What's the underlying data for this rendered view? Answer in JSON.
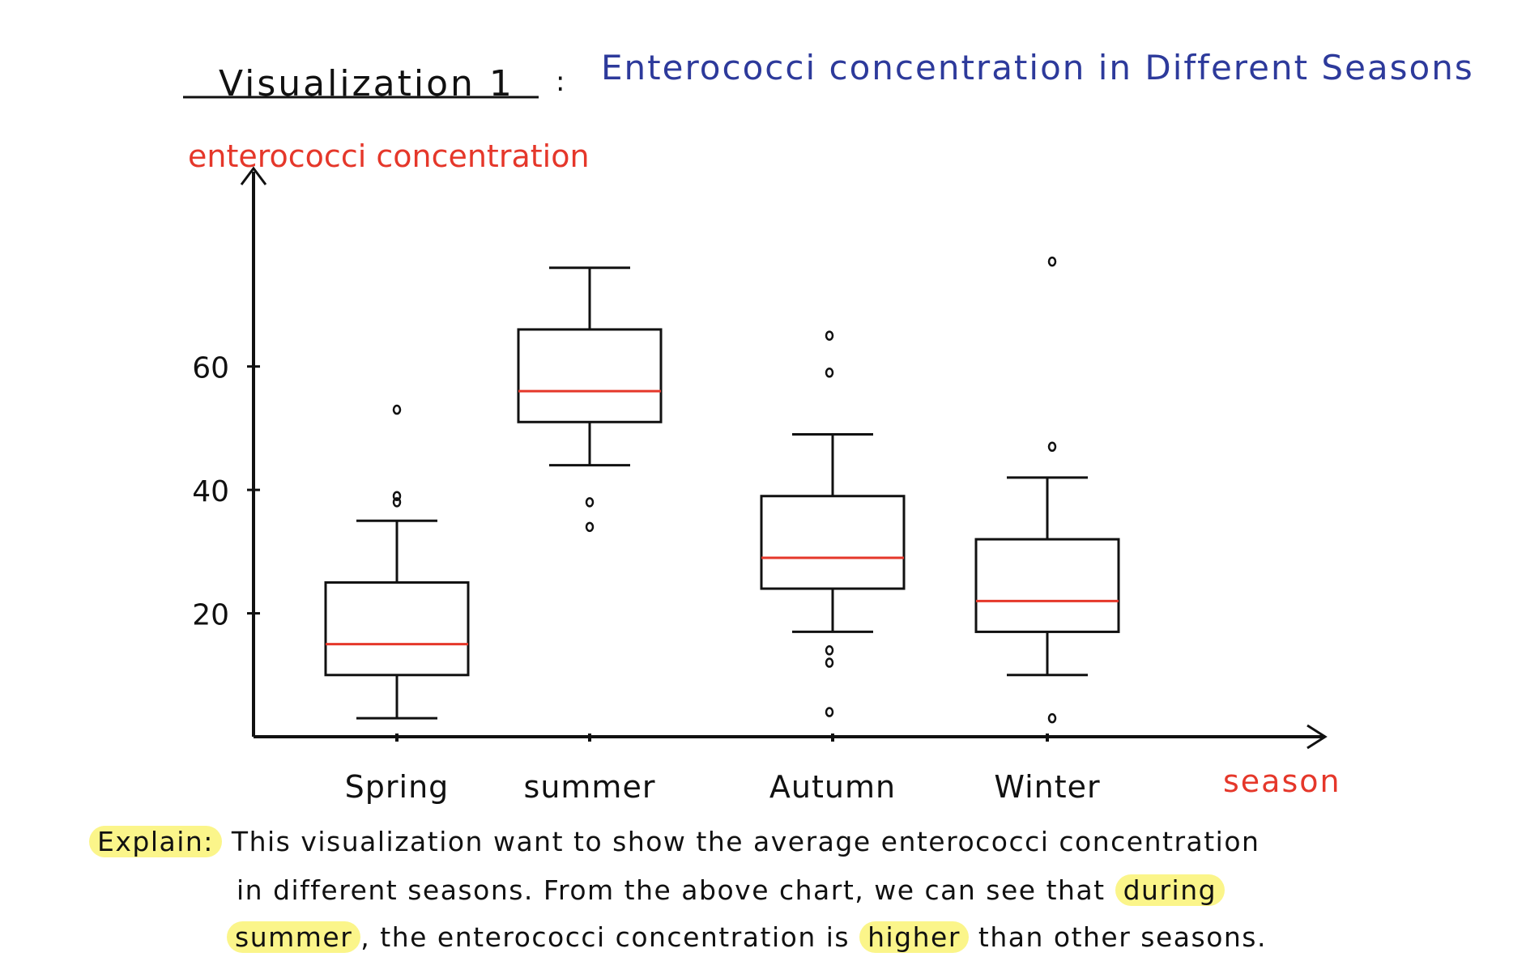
{
  "header": {
    "label": "Visualization 1",
    "separator": ":",
    "subtitle": "Enterococci concentration in Different Seasons"
  },
  "colors": {
    "ink": "#111111",
    "title_blue": "#2d3a9b",
    "axis_red": "#e5372a",
    "median_red": "#e5372a",
    "highlight": "#fbf58a"
  },
  "chart_data": {
    "type": "box",
    "title": "Enterococci concentration in Different Seasons",
    "xlabel": "season",
    "ylabel": "enterococci concentration",
    "categories": [
      "Spring",
      "summer",
      "Autumn",
      "Winter"
    ],
    "yticks": [
      20,
      40,
      60
    ],
    "ylim": [
      0,
      80
    ],
    "grid": false,
    "boxes": [
      {
        "name": "Spring",
        "whisker_low": 3,
        "q1": 10,
        "median": 15,
        "q3": 25,
        "whisker_high": 35,
        "outliers": [
          38,
          39,
          53
        ]
      },
      {
        "name": "summer",
        "whisker_low": 44,
        "q1": 51,
        "median": 56,
        "q3": 66,
        "whisker_high": 76,
        "outliers": [
          34,
          38
        ]
      },
      {
        "name": "Autumn",
        "whisker_low": 17,
        "q1": 24,
        "median": 29,
        "q3": 39,
        "whisker_high": 49,
        "outliers": [
          4,
          12,
          14,
          59,
          65
        ]
      },
      {
        "name": "Winter",
        "whisker_low": 10,
        "q1": 17,
        "median": 22,
        "q3": 32,
        "whisker_high": 42,
        "outliers": [
          3,
          47,
          77
        ]
      }
    ]
  },
  "explain": {
    "label": "Explain:",
    "line1": "This visualization want to show the average enterococci concentration",
    "line2_a": "in different seasons. From the above chart, we can see that ",
    "line2_hl": "during",
    "line3_hl1": "summer",
    "line3_a": ", the enterococci concentration is ",
    "line3_hl2": "higher",
    "line3_b": " than other seasons."
  }
}
